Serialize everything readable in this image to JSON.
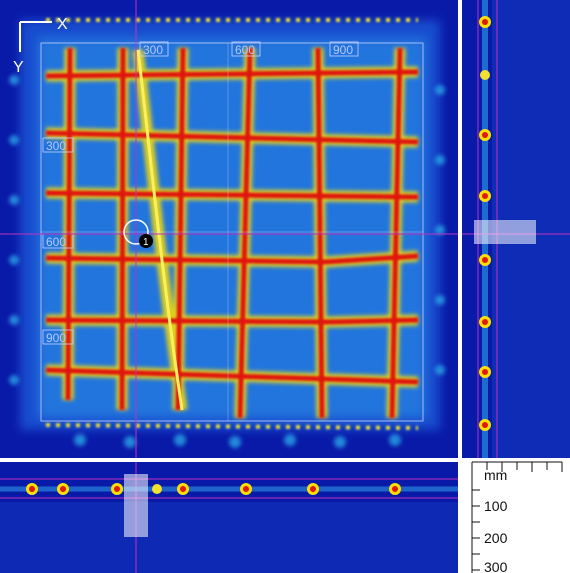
{
  "main_view": {
    "x_axis_label": "X",
    "y_axis_label": "Y",
    "x_ticks": [
      "300",
      "600",
      "900"
    ],
    "y_ticks": [
      "300",
      "600",
      "900"
    ],
    "marker_label": "1",
    "colors": {
      "background": "#0a1aa8",
      "grid_bar": "#e0180c",
      "halo": "#ffe000",
      "mid": "#19c8f0",
      "crosshair": "#c030c0"
    }
  },
  "depth_ruler": {
    "unit": "mm",
    "ticks": [
      "100",
      "200",
      "300"
    ]
  }
}
